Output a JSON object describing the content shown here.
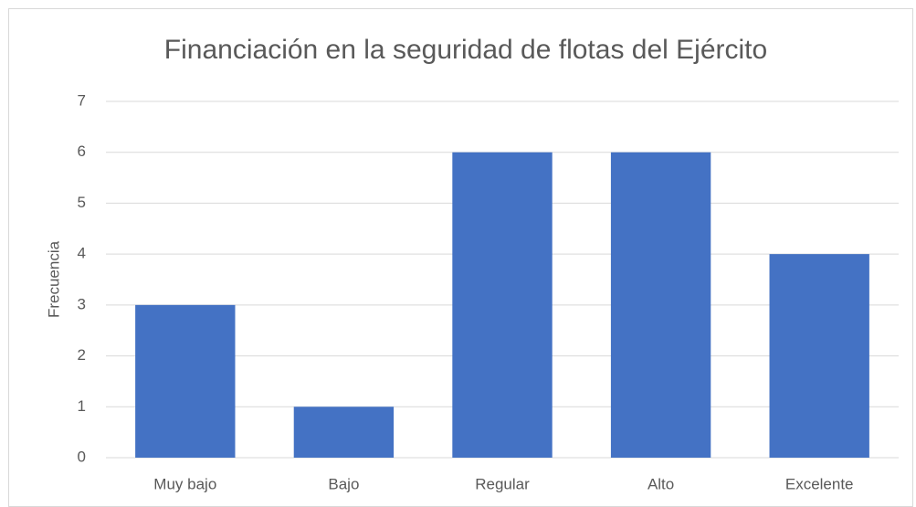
{
  "chart_data": {
    "type": "bar",
    "title": "Financiación en la seguridad de flotas del Ejército",
    "y_label": "Frecuencia",
    "categories": [
      "Muy bajo",
      "Bajo",
      "Regular",
      "Alto",
      "Excelente"
    ],
    "values": [
      3,
      1,
      6,
      6,
      4
    ],
    "color": "#4472c4",
    "ylim": [
      0,
      7
    ],
    "yticks": [
      0,
      1,
      2,
      3,
      4,
      5,
      6,
      7
    ],
    "grid": true
  }
}
